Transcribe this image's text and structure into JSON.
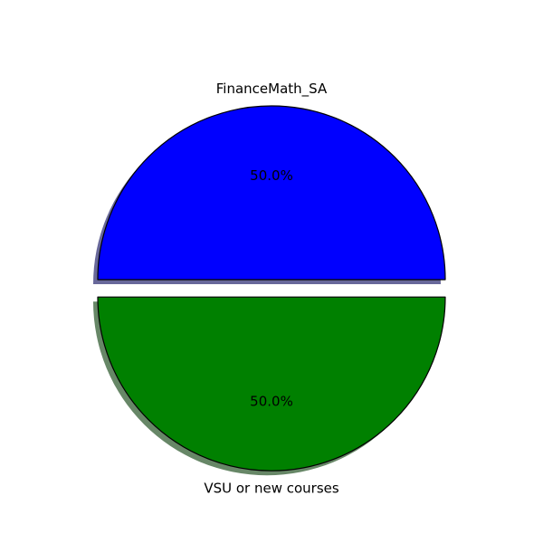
{
  "chart_data": {
    "type": "pie",
    "labels": [
      "FinanceMath_SA",
      "VSU or new courses"
    ],
    "values": [
      50.0,
      50.0
    ],
    "percent_labels": [
      "50.0%",
      "50.0%"
    ],
    "colors": [
      "#0000ff",
      "#008000"
    ],
    "shadow_colors": [
      "#68689a",
      "#678767"
    ],
    "explode": [
      0.0,
      0.1
    ],
    "start_angle_deg": 0,
    "shadow": true,
    "edge_color": "#000000"
  }
}
